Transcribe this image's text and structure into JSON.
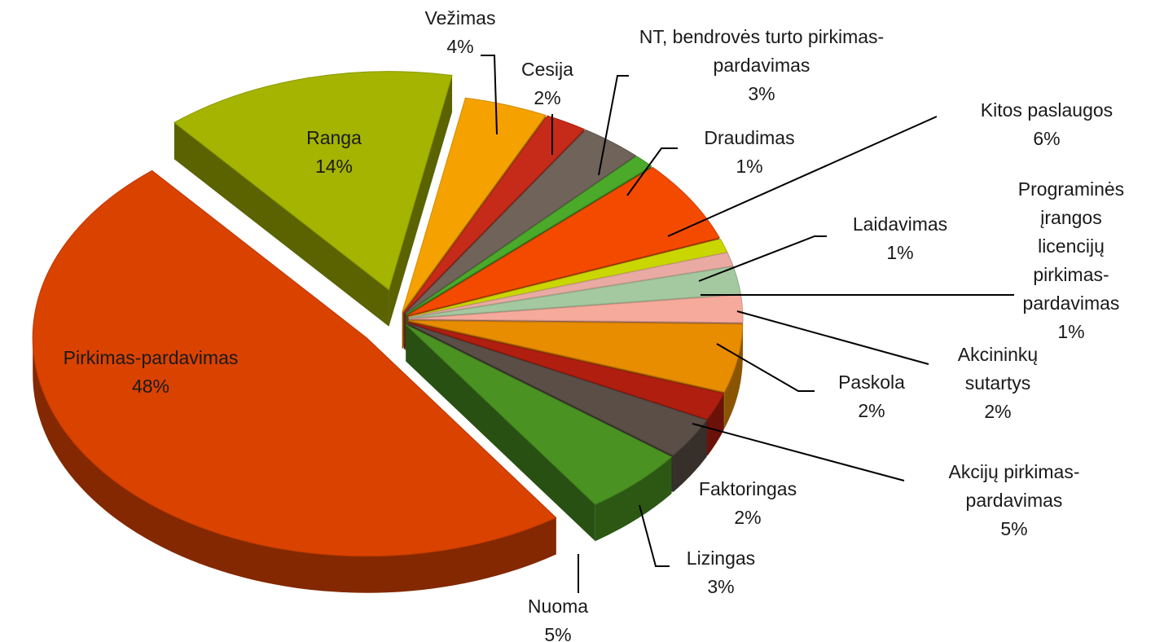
{
  "chart_data": {
    "type": "pie3d",
    "categories": [
      "Ranga",
      "Vežimas",
      "Cesija",
      "NT, bendrovės turto pirkimas-pardavimas",
      "Draudimas",
      "Kitos paslaugos",
      "Laidavimas",
      "Programinės įrangos licencijų pirkimas-pardavimas",
      "Akcininkų sutartys",
      "Paskola",
      "Akcijų pirkimas-pardavimas",
      "Faktoringas",
      "Lizingas",
      "Nuoma",
      "Pirkimas-pardavimas"
    ],
    "values": [
      14,
      4,
      2,
      3,
      1,
      6,
      1,
      1,
      2,
      2,
      5,
      2,
      3,
      5,
      48
    ],
    "value_labels": [
      "14%",
      "4%",
      "2%",
      "3%",
      "1%",
      "6%",
      "1%",
      "1%",
      "2%",
      "2%",
      "5%",
      "2%",
      "3%",
      "5%",
      "48%"
    ],
    "colors": [
      "#a4b400",
      "#f5a200",
      "#c62a18",
      "#6f635a",
      "#4caa2a",
      "#f44a00",
      "#cad600",
      "#e8aaa2",
      "#a4c8a0",
      "#f6aa9c",
      "#e88c00",
      "#b01e10",
      "#5a4e46",
      "#4a9222",
      "#da4200"
    ]
  }
}
